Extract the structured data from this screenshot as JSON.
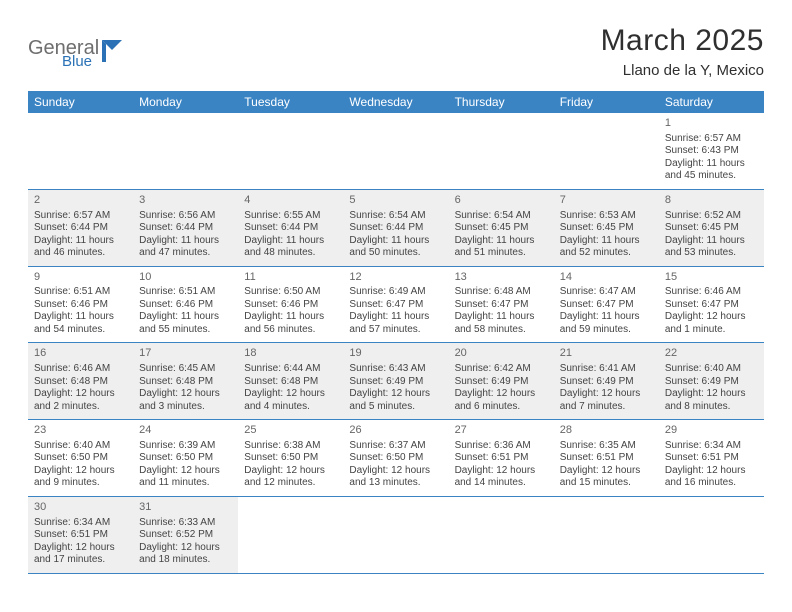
{
  "header": {
    "logo_text1": "General",
    "logo_text2": "Blue",
    "month_title": "March 2025",
    "location": "Llano de la Y, Mexico"
  },
  "colors": {
    "header_bg": "#3b84c4",
    "header_text": "#ffffff",
    "gray_cell": "#efefef",
    "border": "#3b84c4",
    "logo_gray": "#6e6e6e",
    "logo_blue": "#2a72b5"
  },
  "day_names": [
    "Sunday",
    "Monday",
    "Tuesday",
    "Wednesday",
    "Thursday",
    "Friday",
    "Saturday"
  ],
  "weeks": [
    [
      null,
      null,
      null,
      null,
      null,
      null,
      {
        "n": "1",
        "sr": "Sunrise: 6:57 AM",
        "ss": "Sunset: 6:43 PM",
        "dl": "Daylight: 11 hours and 45 minutes."
      }
    ],
    [
      {
        "n": "2",
        "sr": "Sunrise: 6:57 AM",
        "ss": "Sunset: 6:44 PM",
        "dl": "Daylight: 11 hours and 46 minutes."
      },
      {
        "n": "3",
        "sr": "Sunrise: 6:56 AM",
        "ss": "Sunset: 6:44 PM",
        "dl": "Daylight: 11 hours and 47 minutes."
      },
      {
        "n": "4",
        "sr": "Sunrise: 6:55 AM",
        "ss": "Sunset: 6:44 PM",
        "dl": "Daylight: 11 hours and 48 minutes."
      },
      {
        "n": "5",
        "sr": "Sunrise: 6:54 AM",
        "ss": "Sunset: 6:44 PM",
        "dl": "Daylight: 11 hours and 50 minutes."
      },
      {
        "n": "6",
        "sr": "Sunrise: 6:54 AM",
        "ss": "Sunset: 6:45 PM",
        "dl": "Daylight: 11 hours and 51 minutes."
      },
      {
        "n": "7",
        "sr": "Sunrise: 6:53 AM",
        "ss": "Sunset: 6:45 PM",
        "dl": "Daylight: 11 hours and 52 minutes."
      },
      {
        "n": "8",
        "sr": "Sunrise: 6:52 AM",
        "ss": "Sunset: 6:45 PM",
        "dl": "Daylight: 11 hours and 53 minutes."
      }
    ],
    [
      {
        "n": "9",
        "sr": "Sunrise: 6:51 AM",
        "ss": "Sunset: 6:46 PM",
        "dl": "Daylight: 11 hours and 54 minutes."
      },
      {
        "n": "10",
        "sr": "Sunrise: 6:51 AM",
        "ss": "Sunset: 6:46 PM",
        "dl": "Daylight: 11 hours and 55 minutes."
      },
      {
        "n": "11",
        "sr": "Sunrise: 6:50 AM",
        "ss": "Sunset: 6:46 PM",
        "dl": "Daylight: 11 hours and 56 minutes."
      },
      {
        "n": "12",
        "sr": "Sunrise: 6:49 AM",
        "ss": "Sunset: 6:47 PM",
        "dl": "Daylight: 11 hours and 57 minutes."
      },
      {
        "n": "13",
        "sr": "Sunrise: 6:48 AM",
        "ss": "Sunset: 6:47 PM",
        "dl": "Daylight: 11 hours and 58 minutes."
      },
      {
        "n": "14",
        "sr": "Sunrise: 6:47 AM",
        "ss": "Sunset: 6:47 PM",
        "dl": "Daylight: 11 hours and 59 minutes."
      },
      {
        "n": "15",
        "sr": "Sunrise: 6:46 AM",
        "ss": "Sunset: 6:47 PM",
        "dl": "Daylight: 12 hours and 1 minute."
      }
    ],
    [
      {
        "n": "16",
        "sr": "Sunrise: 6:46 AM",
        "ss": "Sunset: 6:48 PM",
        "dl": "Daylight: 12 hours and 2 minutes."
      },
      {
        "n": "17",
        "sr": "Sunrise: 6:45 AM",
        "ss": "Sunset: 6:48 PM",
        "dl": "Daylight: 12 hours and 3 minutes."
      },
      {
        "n": "18",
        "sr": "Sunrise: 6:44 AM",
        "ss": "Sunset: 6:48 PM",
        "dl": "Daylight: 12 hours and 4 minutes."
      },
      {
        "n": "19",
        "sr": "Sunrise: 6:43 AM",
        "ss": "Sunset: 6:49 PM",
        "dl": "Daylight: 12 hours and 5 minutes."
      },
      {
        "n": "20",
        "sr": "Sunrise: 6:42 AM",
        "ss": "Sunset: 6:49 PM",
        "dl": "Daylight: 12 hours and 6 minutes."
      },
      {
        "n": "21",
        "sr": "Sunrise: 6:41 AM",
        "ss": "Sunset: 6:49 PM",
        "dl": "Daylight: 12 hours and 7 minutes."
      },
      {
        "n": "22",
        "sr": "Sunrise: 6:40 AM",
        "ss": "Sunset: 6:49 PM",
        "dl": "Daylight: 12 hours and 8 minutes."
      }
    ],
    [
      {
        "n": "23",
        "sr": "Sunrise: 6:40 AM",
        "ss": "Sunset: 6:50 PM",
        "dl": "Daylight: 12 hours and 9 minutes."
      },
      {
        "n": "24",
        "sr": "Sunrise: 6:39 AM",
        "ss": "Sunset: 6:50 PM",
        "dl": "Daylight: 12 hours and 11 minutes."
      },
      {
        "n": "25",
        "sr": "Sunrise: 6:38 AM",
        "ss": "Sunset: 6:50 PM",
        "dl": "Daylight: 12 hours and 12 minutes."
      },
      {
        "n": "26",
        "sr": "Sunrise: 6:37 AM",
        "ss": "Sunset: 6:50 PM",
        "dl": "Daylight: 12 hours and 13 minutes."
      },
      {
        "n": "27",
        "sr": "Sunrise: 6:36 AM",
        "ss": "Sunset: 6:51 PM",
        "dl": "Daylight: 12 hours and 14 minutes."
      },
      {
        "n": "28",
        "sr": "Sunrise: 6:35 AM",
        "ss": "Sunset: 6:51 PM",
        "dl": "Daylight: 12 hours and 15 minutes."
      },
      {
        "n": "29",
        "sr": "Sunrise: 6:34 AM",
        "ss": "Sunset: 6:51 PM",
        "dl": "Daylight: 12 hours and 16 minutes."
      }
    ],
    [
      {
        "n": "30",
        "sr": "Sunrise: 6:34 AM",
        "ss": "Sunset: 6:51 PM",
        "dl": "Daylight: 12 hours and 17 minutes."
      },
      {
        "n": "31",
        "sr": "Sunrise: 6:33 AM",
        "ss": "Sunset: 6:52 PM",
        "dl": "Daylight: 12 hours and 18 minutes."
      },
      null,
      null,
      null,
      null,
      null
    ]
  ]
}
